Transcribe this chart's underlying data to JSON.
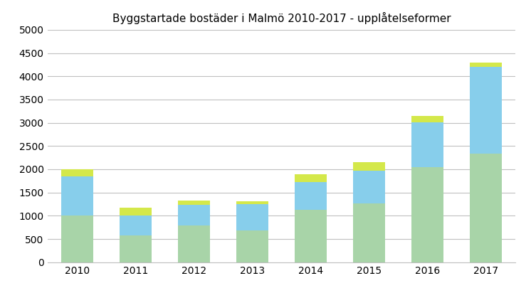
{
  "title": "Byggstartade bostäder i Malmö 2010-2017 - upplåtelseformer",
  "years": [
    "2010",
    "2011",
    "2012",
    "2013",
    "2014",
    "2015",
    "2016",
    "2017"
  ],
  "green": [
    1000,
    570,
    790,
    680,
    1130,
    1270,
    2050,
    2330
  ],
  "blue": [
    840,
    440,
    440,
    570,
    600,
    700,
    960,
    1870
  ],
  "yellow": [
    160,
    170,
    90,
    60,
    160,
    190,
    130,
    90
  ],
  "color_green": "#a8d4a8",
  "color_blue": "#87ceeb",
  "color_yellow": "#d4e84a",
  "ylim": [
    0,
    5000
  ],
  "yticks": [
    0,
    500,
    1000,
    1500,
    2000,
    2500,
    3000,
    3500,
    4000,
    4500,
    5000
  ],
  "background_color": "#ffffff",
  "grid_color": "#c0c0c0",
  "title_fontsize": 11,
  "tick_fontsize": 10,
  "bar_width": 0.55
}
